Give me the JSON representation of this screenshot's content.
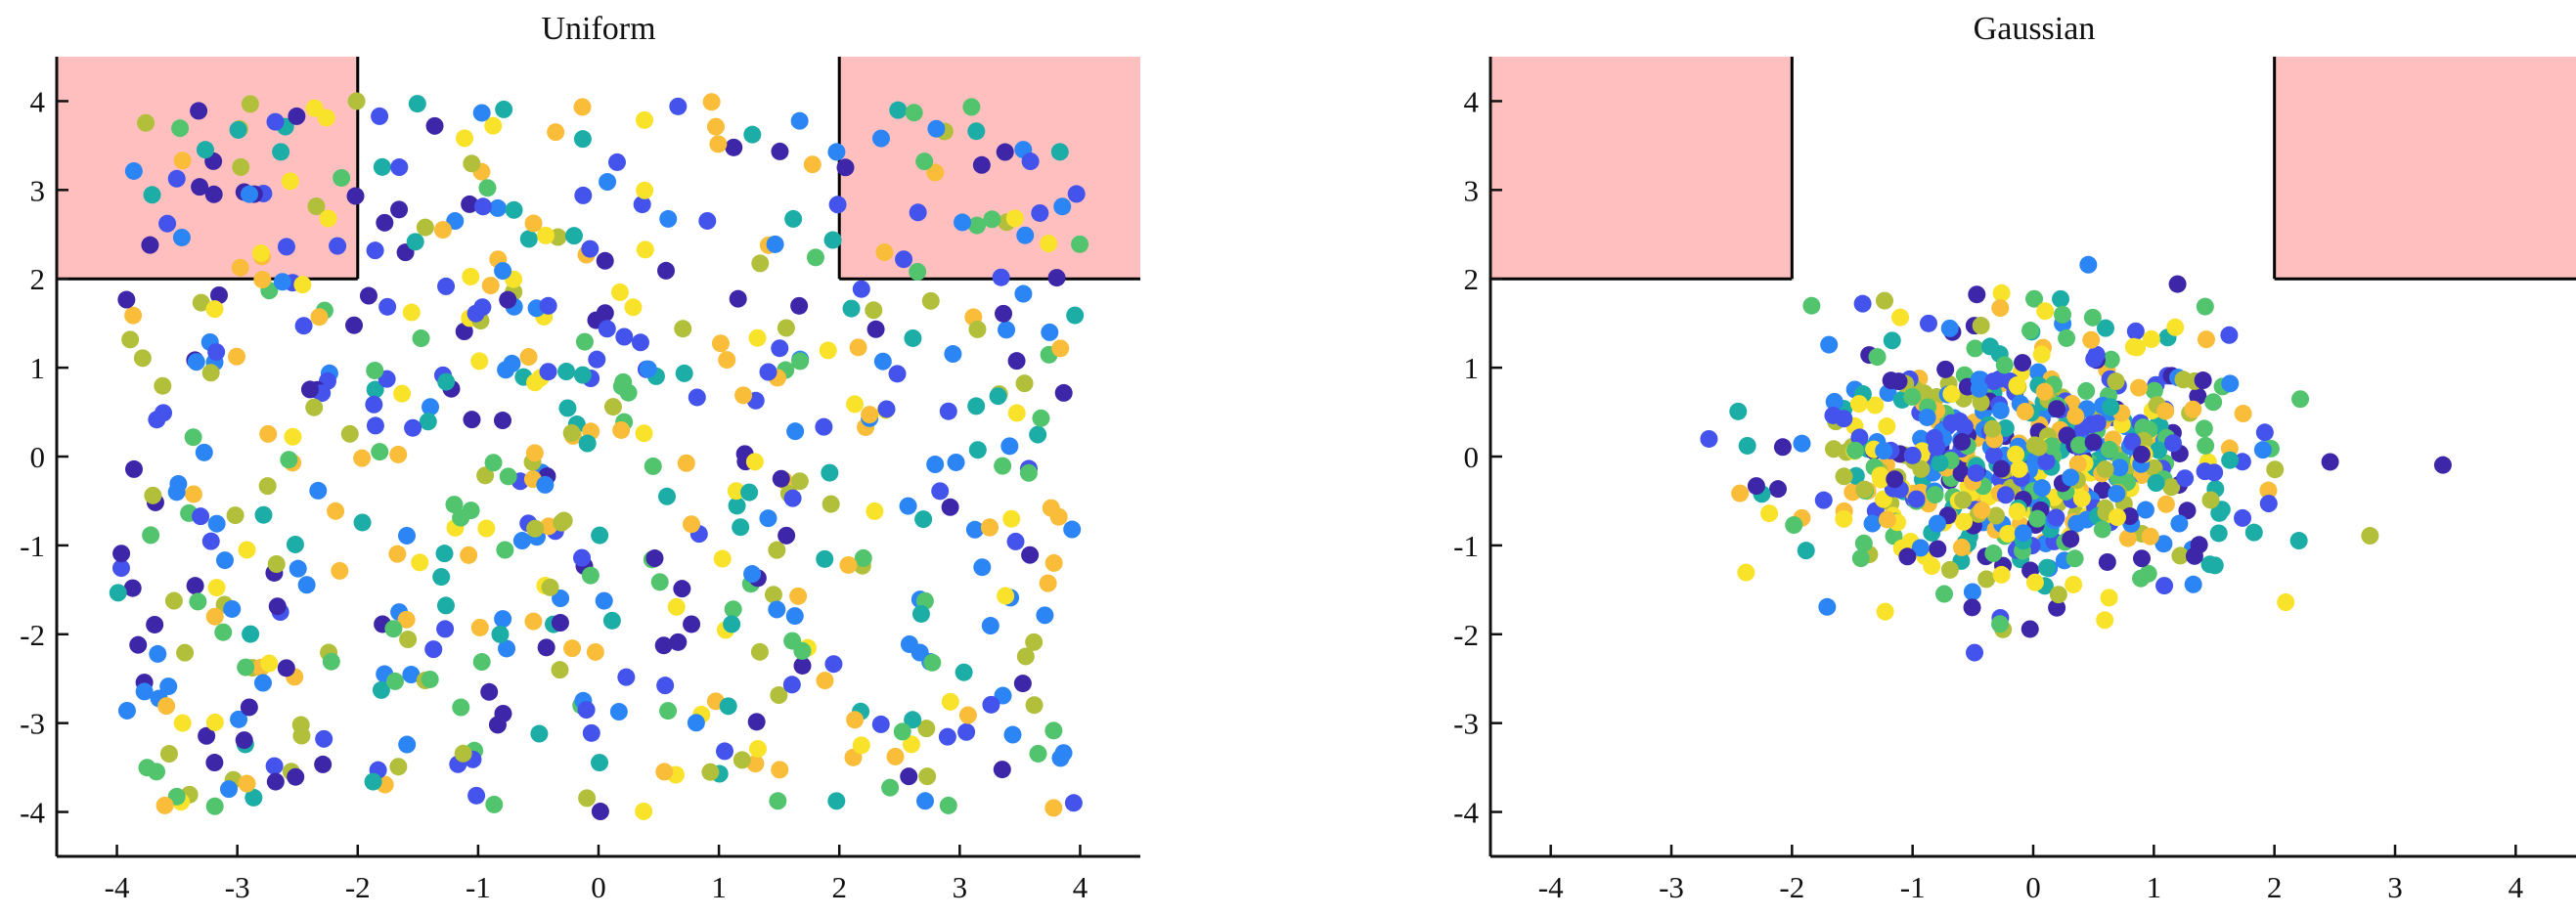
{
  "chart_data": [
    {
      "type": "scatter",
      "title": "Uniform",
      "xlabel": "",
      "ylabel": "",
      "xlim": [
        -4.5,
        4.5
      ],
      "ylim": [
        -4.5,
        4.5
      ],
      "xticks": [
        "-4",
        "-3",
        "-2",
        "-1",
        "0",
        "1",
        "2",
        "3",
        "4"
      ],
      "yticks": [
        "-4",
        "-3",
        "-2",
        "-1",
        "0",
        "1",
        "2",
        "3",
        "4"
      ],
      "grid": false,
      "distribution": "uniform",
      "point_count": 620,
      "x_range": [
        -4,
        4
      ],
      "y_range": [
        -4,
        4
      ],
      "colormap": [
        "#3e26a8",
        "#4353eb",
        "#2c85f5",
        "#1bada6",
        "#52c46e",
        "#b2bf3a",
        "#f9bd3a",
        "#f9e22a"
      ],
      "shaded_regions": [
        {
          "x": [
            -4.5,
            -2
          ],
          "y": [
            2,
            4.5
          ],
          "fill": "#ffbfbf"
        },
        {
          "x": [
            2,
            4.5
          ],
          "y": [
            2,
            4.5
          ],
          "fill": "#ffbfbf"
        }
      ]
    },
    {
      "type": "scatter",
      "title": "Gaussian",
      "xlabel": "",
      "ylabel": "",
      "xlim": [
        -4.5,
        4.5
      ],
      "ylim": [
        -4.5,
        4.5
      ],
      "xticks": [
        "-4",
        "-3",
        "-2",
        "-1",
        "0",
        "1",
        "2",
        "3",
        "4"
      ],
      "yticks": [
        "-4",
        "-3",
        "-2",
        "-1",
        "0",
        "1",
        "2",
        "3",
        "4"
      ],
      "grid": false,
      "distribution": "gaussian",
      "point_count": 620,
      "mean": [
        0,
        0
      ],
      "std": [
        0.9,
        0.75
      ],
      "colormap": [
        "#3e26a8",
        "#4353eb",
        "#2c85f5",
        "#1bada6",
        "#52c46e",
        "#b2bf3a",
        "#f9bd3a",
        "#f9e22a"
      ],
      "shaded_regions": [
        {
          "x": [
            -4.5,
            -2
          ],
          "y": [
            2,
            4.5
          ],
          "fill": "#ffbfbf"
        },
        {
          "x": [
            2,
            4.5
          ],
          "y": [
            2,
            4.5
          ],
          "fill": "#ffbfbf"
        }
      ]
    }
  ]
}
